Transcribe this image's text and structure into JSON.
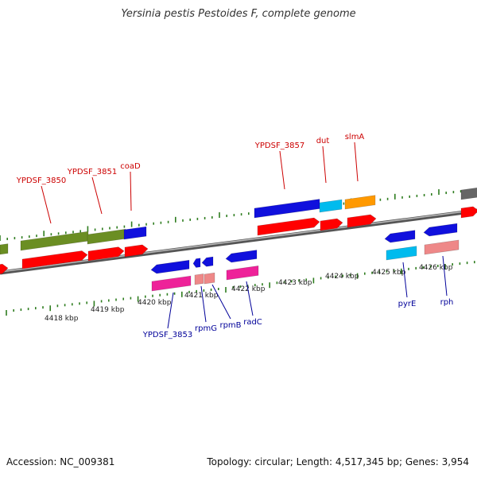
{
  "title": "Yersinia pestis Pestoides F, complete genome",
  "footer": {
    "accession": "Accession: NC_009381",
    "summary": "Topology: circular; Length: 4,517,345 bp; Genes: 3,954"
  },
  "kbp_labels": [
    "4418 kbp",
    "4419 kbp",
    "4420 kbp",
    "4421 kbp",
    "4422 kbp",
    "4423 kbp",
    "4424 kbp",
    "4425 kbp",
    "4426 kbp"
  ],
  "upper_gene_labels": [
    "YPDSF_3850",
    "YPDSF_3851",
    "coaD",
    "YPDSF_3857",
    "dut",
    "slmA"
  ],
  "lower_gene_labels": [
    "YPDSF_3853",
    "rpmG",
    "rpmB",
    "radC",
    "pyrE",
    "rph"
  ],
  "colors": {
    "upper_label": "#cc0000",
    "lower_label": "#000099",
    "tick": "#2e7d1f",
    "backbone": "#777777",
    "olive": "#6b8e23",
    "red": "#ff0000",
    "blue": "#1010dd",
    "cyan": "#00bbee",
    "orange": "#ff9900",
    "pink": "#ee2299",
    "salmon": "#ee8888",
    "gray": "#666666"
  }
}
